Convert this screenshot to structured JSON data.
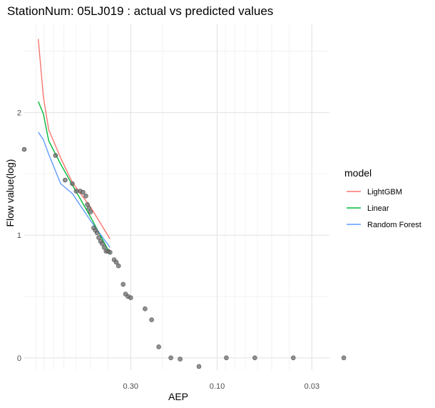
{
  "chart_data": {
    "type": "line",
    "title": "StationNum: 05LJ019 : actual vs predicted values",
    "xlabel": "AEP",
    "ylabel": "Flow value(log)",
    "x_scale": "reversed-log",
    "x_tick_labels": [
      "0.30",
      "0.10",
      "0.03"
    ],
    "x_ticks": [
      0.3,
      0.1,
      0.03
    ],
    "y_ticks": [
      0,
      1,
      2
    ],
    "y_tick_labels": [
      "0",
      "1",
      "2"
    ],
    "xlim": [
      1.16,
      0.024
    ],
    "ylim": [
      -0.1,
      2.72
    ],
    "grid": true,
    "legend": {
      "title": "model",
      "position": "right",
      "entries": [
        {
          "name": "LightGBM",
          "color": "#F8766D"
        },
        {
          "name": "Linear",
          "color": "#00BA38"
        },
        {
          "name": "Random Forest",
          "color": "#619CFF"
        }
      ]
    },
    "series": [
      {
        "name": "LightGBM",
        "color": "#F8766D",
        "x": [
          0.97,
          0.91,
          0.85,
          0.73,
          0.63,
          0.5,
          0.39
        ],
        "y": [
          2.6,
          2.13,
          1.86,
          1.63,
          1.43,
          1.23,
          0.97
        ]
      },
      {
        "name": "Linear",
        "color": "#00BA38",
        "x": [
          0.97,
          0.91,
          0.85,
          0.73,
          0.63,
          0.5,
          0.39
        ],
        "y": [
          2.09,
          1.99,
          1.77,
          1.58,
          1.41,
          1.15,
          0.85
        ]
      },
      {
        "name": "Random Forest",
        "color": "#619CFF",
        "x": [
          0.97,
          0.91,
          0.85,
          0.73,
          0.63,
          0.5,
          0.39
        ],
        "y": [
          1.84,
          1.78,
          1.66,
          1.42,
          1.34,
          1.12,
          0.9
        ]
      }
    ],
    "observed": {
      "color": "#6b6b6b",
      "x": [
        1.16,
        0.78,
        0.69,
        0.63,
        0.6,
        0.57,
        0.55,
        0.53,
        0.52,
        0.51,
        0.5,
        0.48,
        0.47,
        0.46,
        0.45,
        0.44,
        0.43,
        0.42,
        0.41,
        0.4,
        0.39,
        0.37,
        0.36,
        0.35,
        0.33,
        0.32,
        0.31,
        0.3,
        0.25,
        0.23,
        0.21,
        0.18,
        0.16,
        0.126,
        0.089,
        0.062,
        0.038,
        0.02
      ],
      "y": [
        1.7,
        1.65,
        1.45,
        1.42,
        1.36,
        1.36,
        1.35,
        1.32,
        1.25,
        1.22,
        1.19,
        1.06,
        1.04,
        1.02,
        0.98,
        0.95,
        0.93,
        0.9,
        0.87,
        0.87,
        0.86,
        0.8,
        0.78,
        0.75,
        0.6,
        0.52,
        0.5,
        0.49,
        0.4,
        0.31,
        0.09,
        0.0,
        -0.01,
        -0.07,
        0.0,
        0.0,
        0.0,
        0.0
      ]
    }
  }
}
